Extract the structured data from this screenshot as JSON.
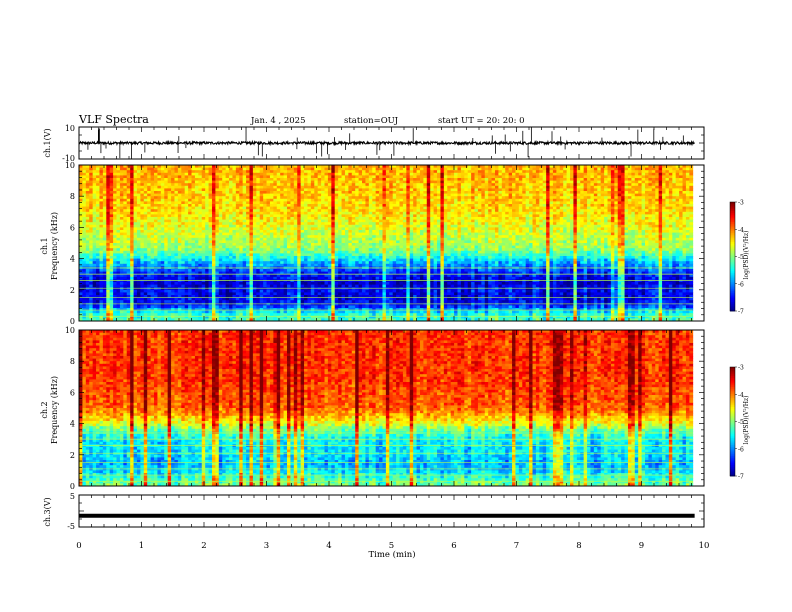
{
  "header": {
    "title": "VLF Spectra",
    "date": "Jan. 4 , 2025",
    "station": "station=OUJ",
    "start": "start UT =  20: 20: 0"
  },
  "chart_data": [
    {
      "type": "line",
      "name_label": "ch.1(V)",
      "ylabel": "ch.1(V)",
      "ylim": [
        -10,
        10
      ],
      "yticks": [
        "10",
        "-10"
      ],
      "x_range_min": [
        0,
        10
      ],
      "baseline_v": 0,
      "note": "waveform amplitude trace with sporadic spikes"
    },
    {
      "type": "heatmap",
      "ylabel_line1": "ch.1",
      "ylabel_line2": "Frequency (kHz)",
      "ylim_khz": [
        0,
        10
      ],
      "yticks": [
        "0",
        "2",
        "4",
        "6",
        "8",
        "10"
      ],
      "x_range_min": [
        0,
        10
      ],
      "colorbar": {
        "label": "log(PSD)(V²/Hz)",
        "range": [
          -7,
          -3
        ],
        "ticks": [
          "-3",
          "-4",
          "-5",
          "-6",
          "-7"
        ]
      },
      "profile_khz": [
        {
          "f": 0.0,
          "v": -5.2
        },
        {
          "f": 0.5,
          "v": -5.4
        },
        {
          "f": 1.0,
          "v": -6.4
        },
        {
          "f": 1.5,
          "v": -6.6
        },
        {
          "f": 2.0,
          "v": -6.5
        },
        {
          "f": 2.5,
          "v": -6.7
        },
        {
          "f": 3.0,
          "v": -6.4
        },
        {
          "f": 3.5,
          "v": -6.0
        },
        {
          "f": 4.0,
          "v": -5.5
        },
        {
          "f": 4.5,
          "v": -5.0
        },
        {
          "f": 5.0,
          "v": -4.8
        },
        {
          "f": 6.0,
          "v": -4.6
        },
        {
          "f": 7.0,
          "v": -4.4
        },
        {
          "f": 8.0,
          "v": -4.3
        },
        {
          "f": 10.0,
          "v": -4.2
        }
      ]
    },
    {
      "type": "heatmap",
      "ylabel_line1": "ch.2",
      "ylabel_line2": "Frequency (kHz)",
      "ylim_khz": [
        0,
        10
      ],
      "yticks": [
        "0",
        "2",
        "4",
        "6",
        "8",
        "10"
      ],
      "x_range_min": [
        0,
        10
      ],
      "colorbar": {
        "label": "log(PSD)(V²/Hz)",
        "range": [
          -7,
          -3
        ],
        "ticks": [
          "-3",
          "-4",
          "-5",
          "-6",
          "-7"
        ]
      },
      "profile_khz": [
        {
          "f": 0.0,
          "v": -5.0
        },
        {
          "f": 0.5,
          "v": -5.3
        },
        {
          "f": 1.0,
          "v": -5.7
        },
        {
          "f": 1.5,
          "v": -5.8
        },
        {
          "f": 2.0,
          "v": -5.6
        },
        {
          "f": 2.5,
          "v": -5.6
        },
        {
          "f": 3.0,
          "v": -5.5
        },
        {
          "f": 3.5,
          "v": -5.2
        },
        {
          "f": 4.0,
          "v": -4.6
        },
        {
          "f": 4.5,
          "v": -4.2
        },
        {
          "f": 5.0,
          "v": -3.9
        },
        {
          "f": 6.0,
          "v": -3.8
        },
        {
          "f": 7.0,
          "v": -3.7
        },
        {
          "f": 8.0,
          "v": -3.7
        },
        {
          "f": 10.0,
          "v": -3.7
        }
      ]
    },
    {
      "type": "line",
      "ylabel": "ch.3(V)",
      "ylim": [
        -5,
        5
      ],
      "yticks": [
        "5",
        "-5"
      ],
      "x_range_min": [
        0,
        10
      ],
      "constant_v": -1.5
    }
  ],
  "x_axis": {
    "label": "Time (min)",
    "ticks": [
      "0",
      "1",
      "2",
      "3",
      "4",
      "5",
      "6",
      "7",
      "8",
      "9",
      "10"
    ],
    "range": [
      0,
      10
    ]
  },
  "colors": {
    "axis": "#000000",
    "trace": "#000000"
  }
}
